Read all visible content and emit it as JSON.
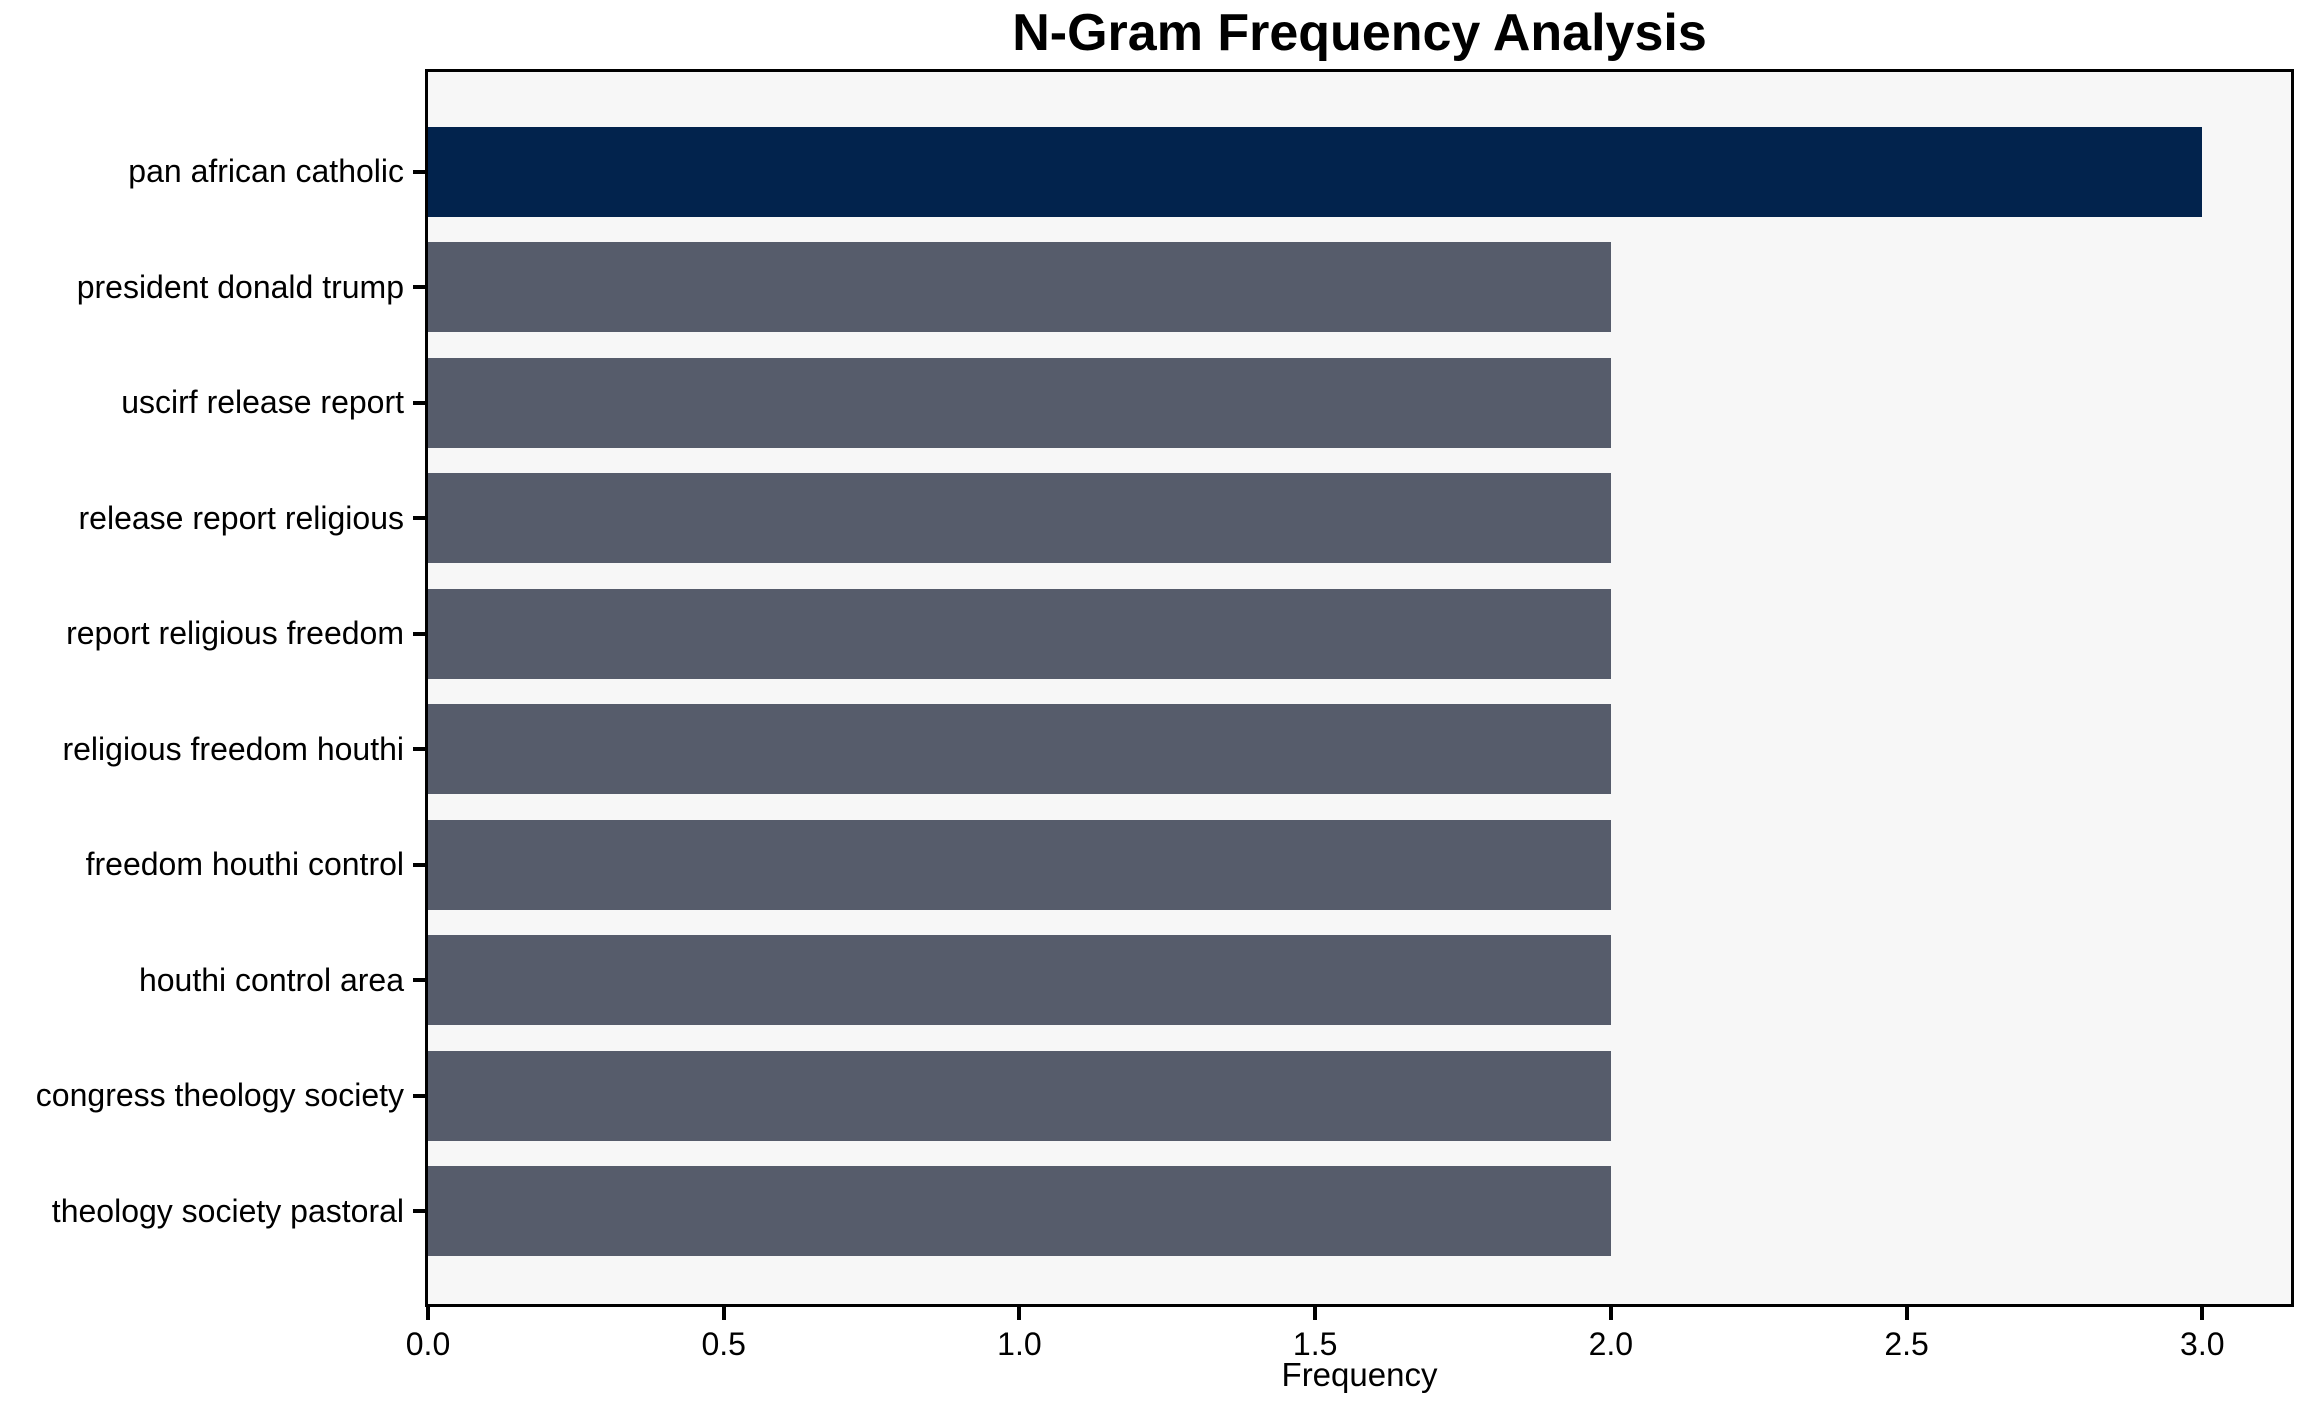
{
  "chart_data": {
    "type": "bar",
    "orientation": "horizontal",
    "title": "N-Gram Frequency Analysis",
    "xlabel": "Frequency",
    "ylabel": "",
    "categories": [
      "pan african catholic",
      "president donald trump",
      "uscirf release report",
      "release report religious",
      "report religious freedom",
      "religious freedom houthi",
      "freedom houthi control",
      "houthi control area",
      "congress theology society",
      "theology society pastoral"
    ],
    "values": [
      3,
      2,
      2,
      2,
      2,
      2,
      2,
      2,
      2,
      2
    ],
    "bar_colors": [
      "#02234d",
      "#565c6b",
      "#565c6b",
      "#565c6b",
      "#565c6b",
      "#565c6b",
      "#565c6b",
      "#565c6b",
      "#565c6b",
      "#565c6b"
    ],
    "xlim": [
      0,
      3.15
    ],
    "x_ticks": [
      {
        "value": 0.0,
        "label": "0.0"
      },
      {
        "value": 0.5,
        "label": "0.5"
      },
      {
        "value": 1.0,
        "label": "1.0"
      },
      {
        "value": 1.5,
        "label": "1.5"
      },
      {
        "value": 2.0,
        "label": "2.0"
      },
      {
        "value": 2.5,
        "label": "2.5"
      },
      {
        "value": 3.0,
        "label": "3.0"
      }
    ],
    "colors": {
      "highlight": "#02234d",
      "default": "#565c6b",
      "plot_bg": "#f7f7f7",
      "spine": "#000000",
      "text": "#000000"
    },
    "grid": false,
    "legend_position": "none"
  }
}
